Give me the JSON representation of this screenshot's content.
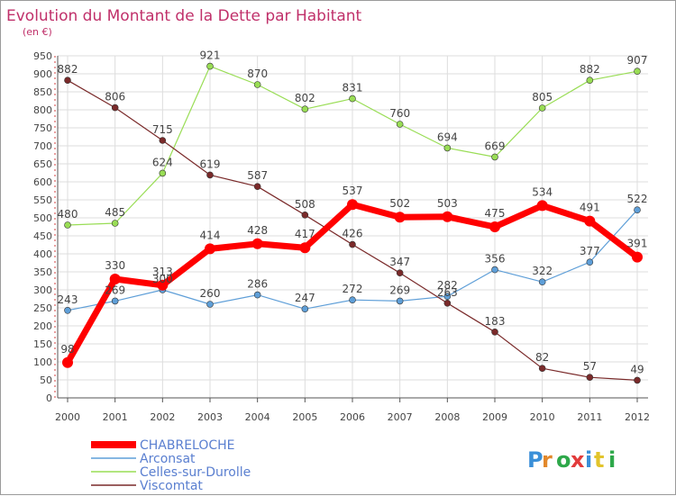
{
  "chart_data": {
    "type": "line",
    "title": "Evolution du Montant de la Dette par Habitant",
    "subtitle": "(en €)",
    "x": [
      "2000",
      "2001",
      "2002",
      "2003",
      "2004",
      "2005",
      "2006",
      "2007",
      "2008",
      "2009",
      "2010",
      "2011",
      "2012"
    ],
    "ylim": [
      0,
      950
    ],
    "yticks": [
      0,
      50,
      100,
      150,
      200,
      250,
      300,
      350,
      400,
      450,
      500,
      550,
      600,
      650,
      700,
      750,
      800,
      850,
      900,
      950
    ],
    "grid": true,
    "legend_position": "bottom-left",
    "series": [
      {
        "name": "CHABRELOCHE",
        "values": [
          98,
          330,
          313,
          414,
          428,
          417,
          537,
          502,
          503,
          475,
          534,
          491,
          391
        ],
        "color": "#ff0000",
        "emphasis": true
      },
      {
        "name": "Arconsat",
        "values": [
          243,
          269,
          300,
          260,
          286,
          247,
          272,
          269,
          282,
          356,
          322,
          377,
          522
        ],
        "color": "#5f9fd8"
      },
      {
        "name": "Celles-sur-Durolle",
        "values": [
          480,
          485,
          624,
          921,
          870,
          802,
          831,
          760,
          694,
          669,
          805,
          882,
          907
        ],
        "color": "#99dd55"
      },
      {
        "name": "Viscomtat",
        "values": [
          882,
          806,
          715,
          619,
          587,
          508,
          426,
          347,
          263,
          183,
          82,
          57,
          49
        ],
        "color": "#7a2a2a"
      }
    ],
    "colors": {
      "title": "#c0306a",
      "label": "#444444",
      "grid": "#dddddd",
      "axis": "#555555"
    }
  },
  "logo": {
    "text": "Proxiti"
  }
}
